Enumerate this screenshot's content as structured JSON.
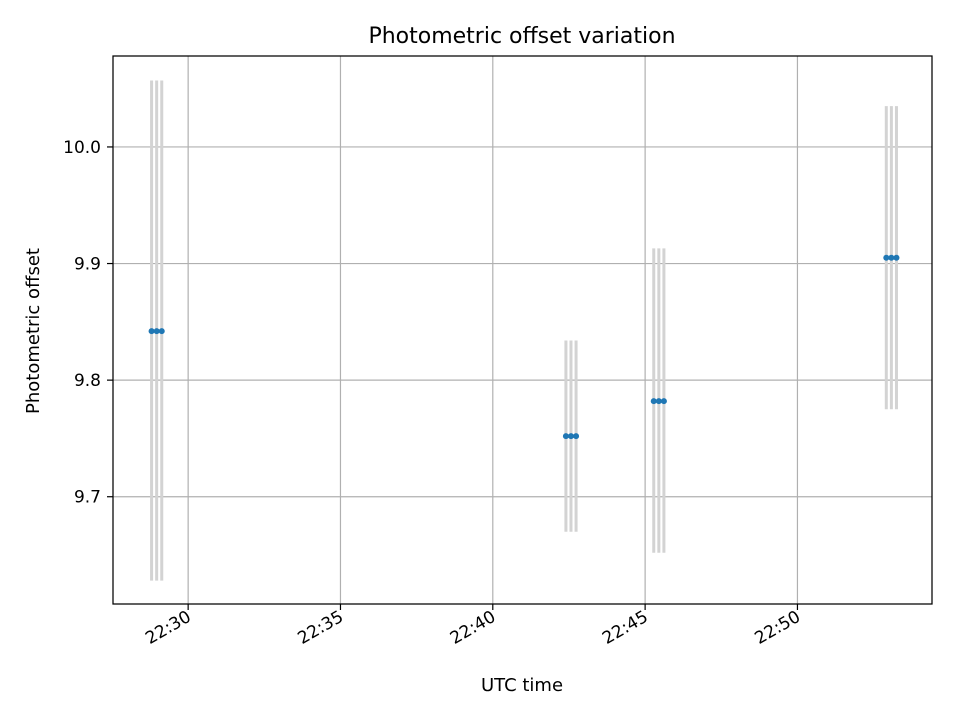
{
  "chart_data": {
    "type": "scatter",
    "title": "Photometric offset variation",
    "xlabel": "UTC time",
    "ylabel": "Photometric offset",
    "x_tick_labels": [
      "22:30",
      "22:35",
      "22:40",
      "22:45",
      "22:50"
    ],
    "y_tick_labels": [
      "9.7",
      "9.8",
      "9.9",
      "10.0"
    ],
    "y_ticks": [
      9.7,
      9.8,
      9.9,
      10.0
    ],
    "ylim": [
      9.608,
      10.078
    ],
    "xlim": [
      "22:27:32",
      "22:54:25"
    ],
    "grid": true,
    "legend": "none",
    "marker_color": "#1f77b4",
    "errorbar_color": "#d3d3d3",
    "series": [
      {
        "points": [
          {
            "x": "22:28:48",
            "y": 9.842,
            "y_low": 9.628,
            "y_high": 10.057
          },
          {
            "x": "22:28:58",
            "y": 9.842,
            "y_low": 9.628,
            "y_high": 10.057
          },
          {
            "x": "22:29:08",
            "y": 9.842,
            "y_low": 9.628,
            "y_high": 10.057
          },
          {
            "x": "22:42:24",
            "y": 9.752,
            "y_low": 9.67,
            "y_high": 9.834
          },
          {
            "x": "22:42:34",
            "y": 9.752,
            "y_low": 9.67,
            "y_high": 9.834
          },
          {
            "x": "22:42:44",
            "y": 9.752,
            "y_low": 9.67,
            "y_high": 9.834
          },
          {
            "x": "22:45:17",
            "y": 9.782,
            "y_low": 9.652,
            "y_high": 9.913
          },
          {
            "x": "22:45:27",
            "y": 9.782,
            "y_low": 9.652,
            "y_high": 9.913
          },
          {
            "x": "22:45:37",
            "y": 9.782,
            "y_low": 9.652,
            "y_high": 9.913
          },
          {
            "x": "22:52:55",
            "y": 9.905,
            "y_low": 9.775,
            "y_high": 10.035
          },
          {
            "x": "22:53:05",
            "y": 9.905,
            "y_low": 9.775,
            "y_high": 10.035
          },
          {
            "x": "22:53:15",
            "y": 9.905,
            "y_low": 9.775,
            "y_high": 10.035
          }
        ]
      }
    ]
  }
}
